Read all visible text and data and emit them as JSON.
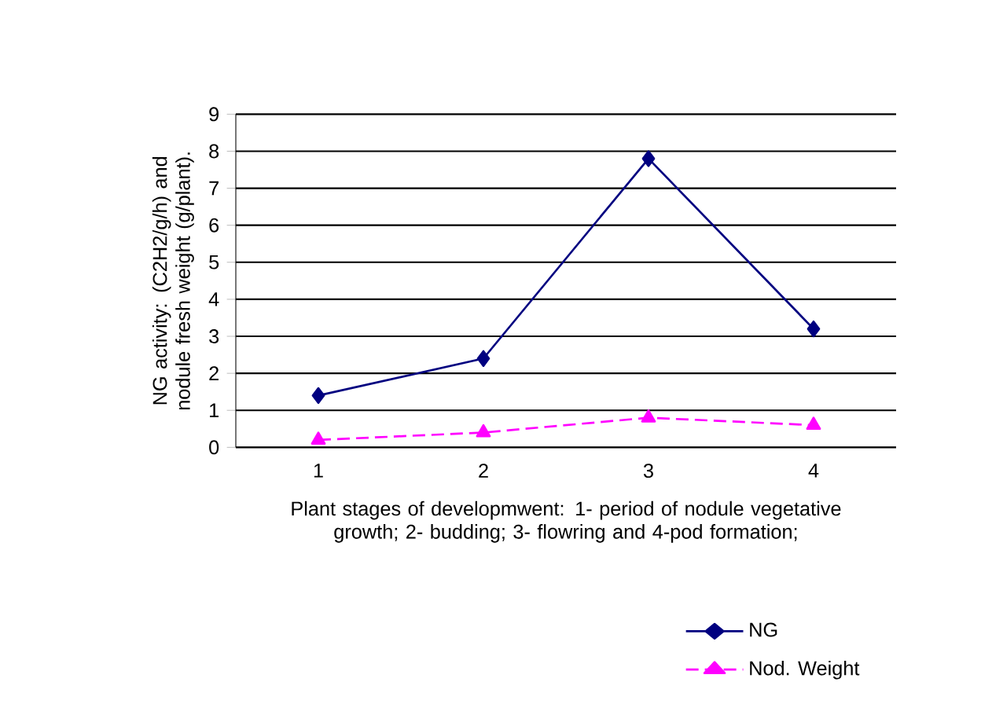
{
  "chart_data": {
    "type": "line",
    "categories": [
      "1",
      "2",
      "3",
      "4"
    ],
    "xlabel": "Plant stages of developmwent:  1- period of nodule vegetative growth;  2- budding;  3- flowring and  4-pod formation;",
    "ylabel": "NG activity: (C2H2/g/h)  and nodule fresh  weight (g/plant).",
    "series": [
      {
        "name": "NG",
        "color": "#000080",
        "values": [
          1.4,
          2.4,
          7.8,
          3.2
        ],
        "marker": "diamond",
        "line_style": "solid"
      },
      {
        "name": "Nod. Weight",
        "color": "#ff00ff",
        "values": [
          0.2,
          0.4,
          0.8,
          0.6
        ],
        "marker": "triangle",
        "line_style": "dashed"
      }
    ],
    "ylim": [
      0,
      9
    ],
    "yticks": [
      0,
      1,
      2,
      3,
      4,
      5,
      6,
      7,
      8,
      9
    ],
    "grid": "y",
    "legend": "bottom right"
  }
}
